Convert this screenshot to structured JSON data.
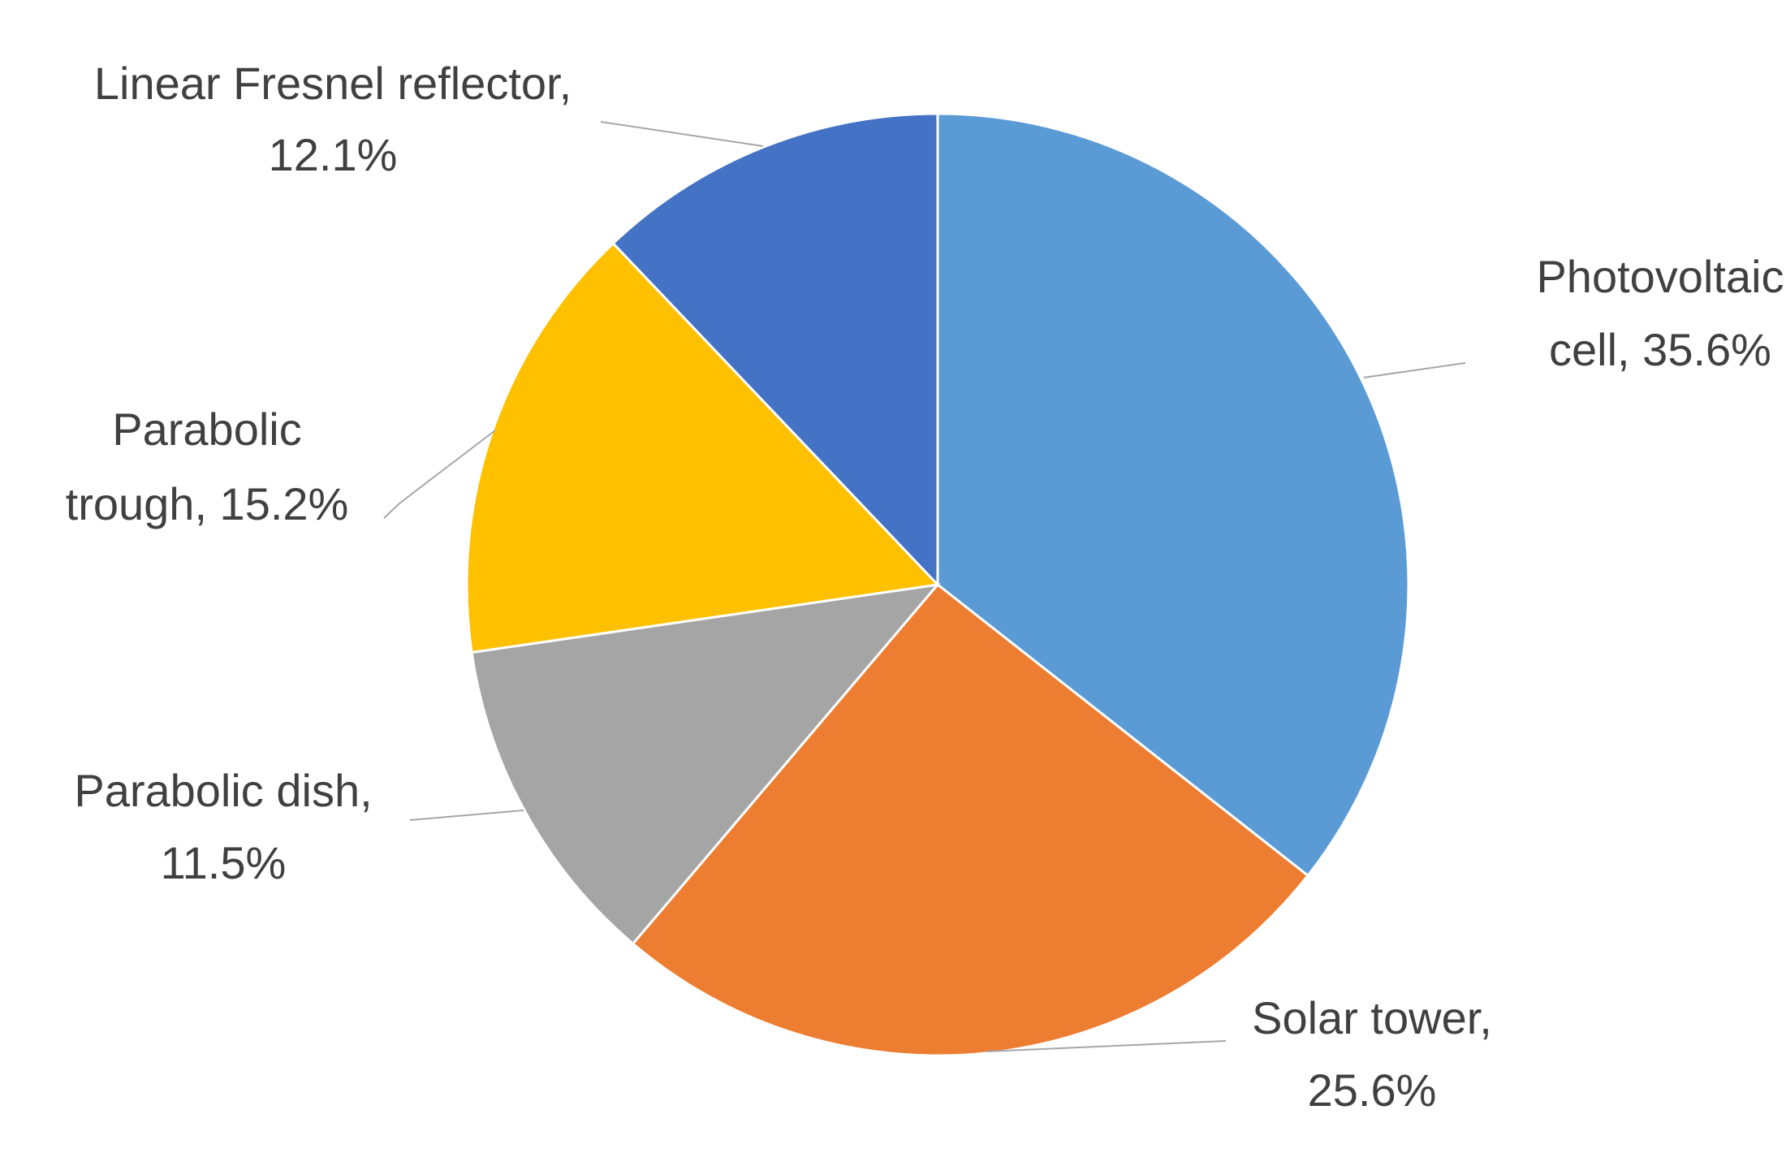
{
  "chart_data": {
    "type": "pie",
    "title": "",
    "slices": [
      {
        "name": "Photovoltaic cell",
        "value": 35.6,
        "label_lines": [
          "Photovoltaic",
          "cell, 35.6%"
        ],
        "color": "#5b9bd5"
      },
      {
        "name": "Solar tower",
        "value": 25.6,
        "label_lines": [
          "Solar tower,",
          "25.6%"
        ],
        "color": "#ed7d31"
      },
      {
        "name": "Parabolic dish",
        "value": 11.5,
        "label_lines": [
          "Parabolic dish,",
          "11.5%"
        ],
        "color": "#a5a5a5"
      },
      {
        "name": "Parabolic trough",
        "value": 15.2,
        "label_lines": [
          "Parabolic",
          "trough, 15.2%"
        ],
        "color": "#ffc000"
      },
      {
        "name": "Linear Fresnel reflector",
        "value": 12.1,
        "label_lines": [
          "Linear Fresnel reflector,",
          "12.1%"
        ],
        "color": "#4472c4"
      }
    ],
    "start_angle": "12 o'clock",
    "direction": "clockwise",
    "legend": "none"
  }
}
